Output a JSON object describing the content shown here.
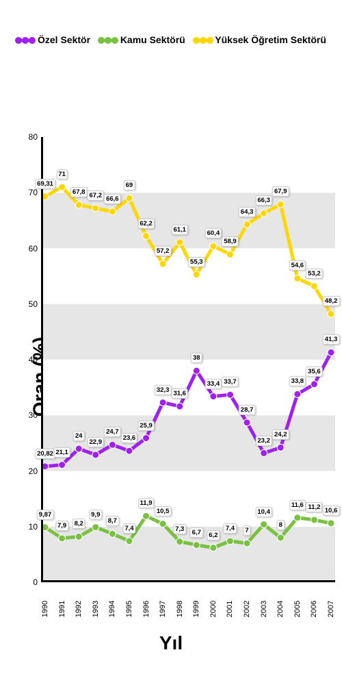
{
  "legend": {
    "items": [
      {
        "label": "Özel Sektör",
        "color": "#a020f0"
      },
      {
        "label": "Kamu Sektörü",
        "color": "#7ac142"
      },
      {
        "label": "Yüksek Öğretim Sektörü",
        "color": "#ffd700"
      }
    ]
  },
  "axes": {
    "x_label": "Yıl",
    "y_label": "Oran (%)",
    "ylim": [
      0,
      80
    ],
    "ytick_step": 10,
    "categories": [
      "1990",
      "1991",
      "1992",
      "1993",
      "1994",
      "1995",
      "1996",
      "1997",
      "1998",
      "1999",
      "2000",
      "2001",
      "2002",
      "2003",
      "2004",
      "2005",
      "2006",
      "2007"
    ]
  },
  "style": {
    "line_width": 5,
    "marker_radius": 5,
    "grid_band_light": "#ffffff",
    "grid_band_dark": "#e6e6e6",
    "label_fontsize": 28,
    "tick_fontsize": 12,
    "data_label_bg": "#fafafa",
    "data_label_border": "#cccccc",
    "background": "#ffffff"
  },
  "series": {
    "ozel": {
      "name": "Özel Sektör",
      "color": "#a020f0",
      "values": [
        20.82,
        21.1,
        24,
        22.9,
        24.7,
        23.6,
        25.9,
        32.3,
        31.6,
        38,
        33.4,
        33.7,
        28.7,
        23.2,
        24.2,
        33.8,
        35.6,
        41.3
      ],
      "labels": [
        "20,82",
        "21,1",
        "24",
        "22,9",
        "24,7",
        "23,6",
        "25,9",
        "32,3",
        "31,6",
        "38",
        "33,4",
        "33,7",
        "28,7",
        "23,2",
        "24,2",
        "33,8",
        "35,6",
        "41,3"
      ]
    },
    "kamu": {
      "name": "Kamu Sektörü",
      "color": "#7ac142",
      "values": [
        9.87,
        7.9,
        8.2,
        9.9,
        8.7,
        7.4,
        11.9,
        10.5,
        7.3,
        6.7,
        6.2,
        7.4,
        7,
        10.4,
        8,
        11.6,
        11.2,
        10.6
      ],
      "labels": [
        "9,87",
        "7,9",
        "8,2",
        "9,9",
        "8,7",
        "7,4",
        "11,9",
        "10,5",
        "7,3",
        "6,7",
        "6,2",
        "7,4",
        "7",
        "10,4",
        "8",
        "11,6",
        "11,2",
        "10,6"
      ]
    },
    "yuksek": {
      "name": "Yüksek Öğretim Sektörü",
      "color": "#ffd700",
      "values": [
        69.31,
        71,
        67.8,
        67.2,
        66.6,
        69,
        62.2,
        57.2,
        61.1,
        55.3,
        60.4,
        58.9,
        64.3,
        66.3,
        67.9,
        54.6,
        53.2,
        48.2
      ],
      "labels": [
        "69,31",
        "71",
        "67,8",
        "67,2",
        "66,6",
        "69",
        "62,2",
        "57,2",
        "61,1",
        "55,3",
        "60,4",
        "58,9",
        "64,3",
        "66,3",
        "67,9",
        "54,6",
        "53,2",
        "48,2"
      ]
    }
  }
}
